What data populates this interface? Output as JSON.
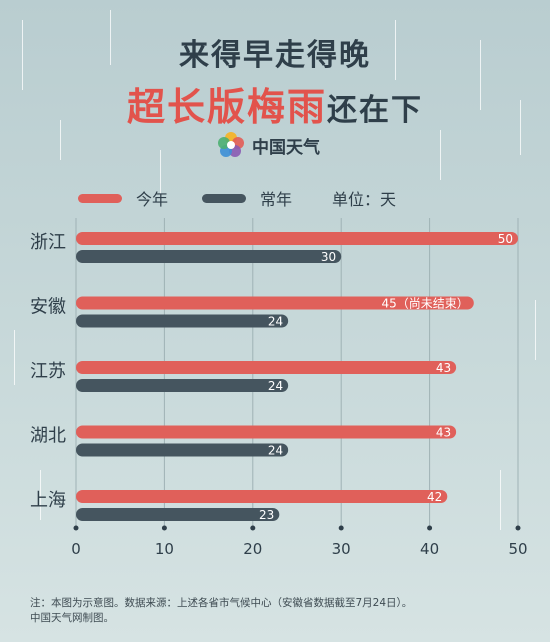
{
  "title_line1": "来得早走得晚",
  "title_line2_highlight": "超长版梅雨",
  "title_line2_rest": "还在下",
  "brand": "中国天气",
  "legend": {
    "this_year": "今年",
    "normal_year": "常年",
    "unit": "单位：天"
  },
  "colors": {
    "this_year": "#e0605a",
    "normal_year": "#45555f",
    "title_highlight": "#e2534c"
  },
  "chart_data": {
    "type": "bar",
    "orientation": "horizontal",
    "categories": [
      "浙江",
      "安徽",
      "江苏",
      "湖北",
      "上海"
    ],
    "series": [
      {
        "name": "今年",
        "values": [
          50,
          45,
          43,
          43,
          42
        ],
        "labels": [
          "50",
          "45（尚未结束）",
          "43",
          "43",
          "42"
        ]
      },
      {
        "name": "常年",
        "values": [
          30,
          24,
          24,
          24,
          23
        ],
        "labels": [
          "30",
          "24",
          "24",
          "24",
          "23"
        ]
      }
    ],
    "xlim": [
      0,
      50
    ],
    "xticks": [
      "0",
      "10",
      "20",
      "30",
      "40",
      "50"
    ],
    "grid": true
  },
  "note_line1": "注：本图为示意图。数据来源：上述各省市气候中心（安徽省数据截至7月24日）。",
  "note_line2": "中国天气网制图。"
}
